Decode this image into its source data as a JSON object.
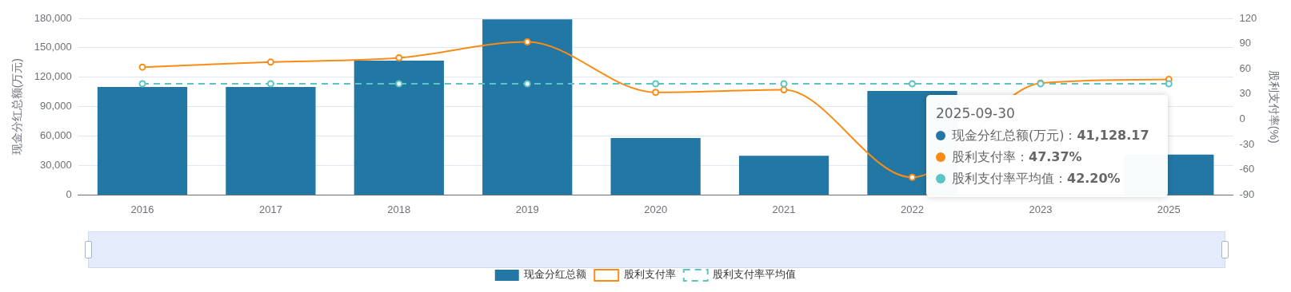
{
  "chart_data": {
    "type": "bar",
    "categories": [
      "2016",
      "2017",
      "2018",
      "2019",
      "2020",
      "2021",
      "2022",
      "2023",
      "2025"
    ],
    "ylabel": "现金分红总额(万元)",
    "y2label": "股利支付率(%)",
    "ylim": [
      0,
      180000
    ],
    "yticks": [
      0,
      {
        "value": 30000,
        "label": "30,000"
      },
      {
        "value": 60000,
        "label": "60,000"
      },
      {
        "value": 90000,
        "label": "90,000"
      },
      {
        "value": 120000,
        "label": "120,000"
      },
      {
        "value": 150000,
        "label": "150,000"
      },
      {
        "value": 180000,
        "label": "180,000"
      }
    ],
    "y2lim": [
      -90,
      120
    ],
    "y2ticks": [
      -90,
      -60,
      -30,
      0,
      30,
      60,
      90,
      120
    ],
    "series": [
      {
        "name": "现金分红总额",
        "color": "#2377a4",
        "values": [
          110000,
          110000,
          137000,
          179000,
          58000,
          40000,
          106000,
          null,
          41128.17
        ]
      },
      {
        "name": "股利支付率",
        "type": "line",
        "axis": "y2",
        "color": "#fa8c16",
        "line_style": "solid",
        "marker": "circle",
        "values": [
          62,
          68,
          73,
          92,
          32,
          35,
          -69,
          43,
          47.37
        ]
      },
      {
        "name": "股利支付率平均值",
        "type": "line",
        "axis": "y2",
        "color": "#5bc4c4",
        "line_style": "dashed",
        "marker": "circle",
        "values": [
          42.2,
          42.2,
          42.2,
          42.2,
          42.2,
          42.2,
          42.2,
          42.2,
          42.2
        ]
      }
    ],
    "grid": "y",
    "legend": "bottom",
    "annotations": [
      "2025-09-30",
      "现金分红总额(万元)：41,128.17",
      "股利支付率：47.37%",
      "股利支付率平均值：42.20%"
    ]
  }
}
